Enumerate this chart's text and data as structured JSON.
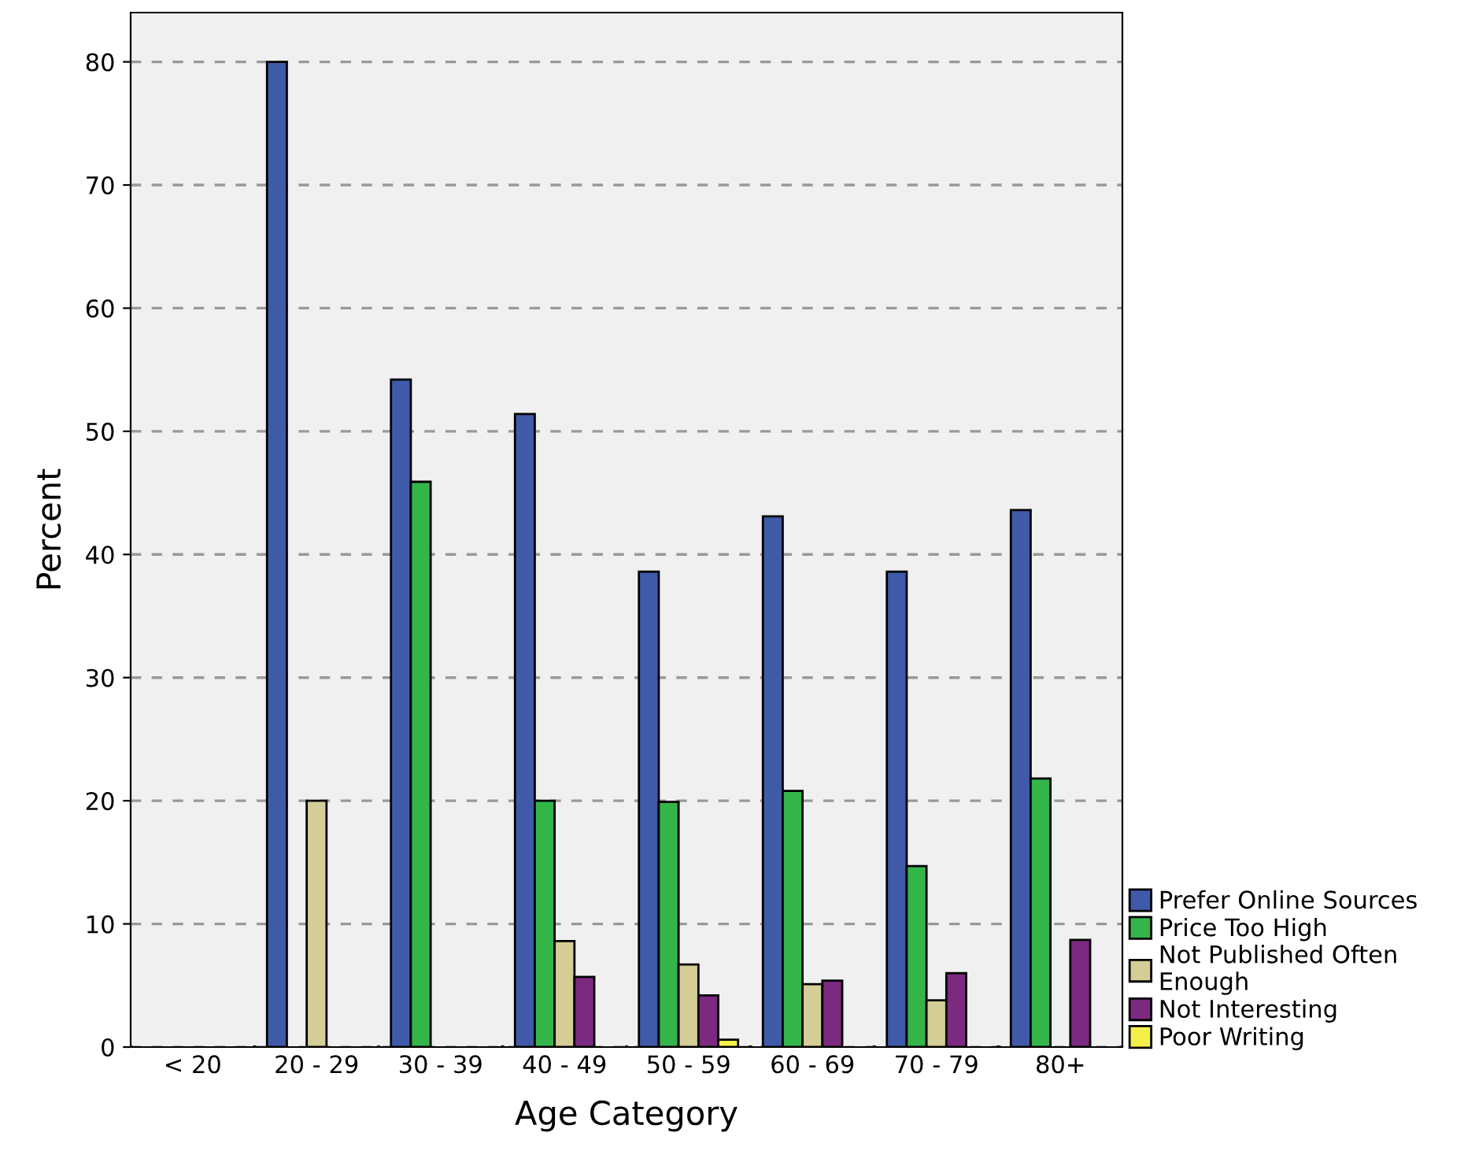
{
  "chart_data": {
    "type": "bar",
    "xlabel": "Age Category",
    "ylabel": "Percent",
    "categories": [
      "< 20",
      "20 - 29",
      "30 - 39",
      "40 - 49",
      "50 - 59",
      "60 - 69",
      "70 - 79",
      "80+"
    ],
    "series": [
      {
        "name": "Prefer Online Sources",
        "color": "#3f5aa9",
        "values": [
          null,
          80,
          54.2,
          51.4,
          38.6,
          43.1,
          38.6,
          43.6
        ]
      },
      {
        "name": "Price Too High",
        "color": "#33b54a",
        "values": [
          null,
          null,
          45.9,
          20,
          19.9,
          20.8,
          14.7,
          21.8
        ]
      },
      {
        "name": "Not Published Often\nEnough",
        "color": "#d4cd96",
        "values": [
          null,
          20,
          null,
          8.6,
          6.7,
          5.1,
          3.8,
          null
        ]
      },
      {
        "name": "Not Interesting",
        "color": "#7c2a7f",
        "values": [
          null,
          null,
          null,
          5.7,
          4.2,
          5.4,
          6.0,
          8.7
        ]
      },
      {
        "name": "Poor Writing",
        "color": "#f4f04a",
        "values": [
          null,
          null,
          null,
          null,
          0.6,
          null,
          null,
          null
        ]
      }
    ],
    "ylim": [
      0,
      84
    ],
    "yticks": [
      0,
      10,
      20,
      30,
      40,
      50,
      60,
      70,
      80
    ],
    "grid": "y",
    "line_style": "dashed",
    "legend": "bottom right"
  }
}
